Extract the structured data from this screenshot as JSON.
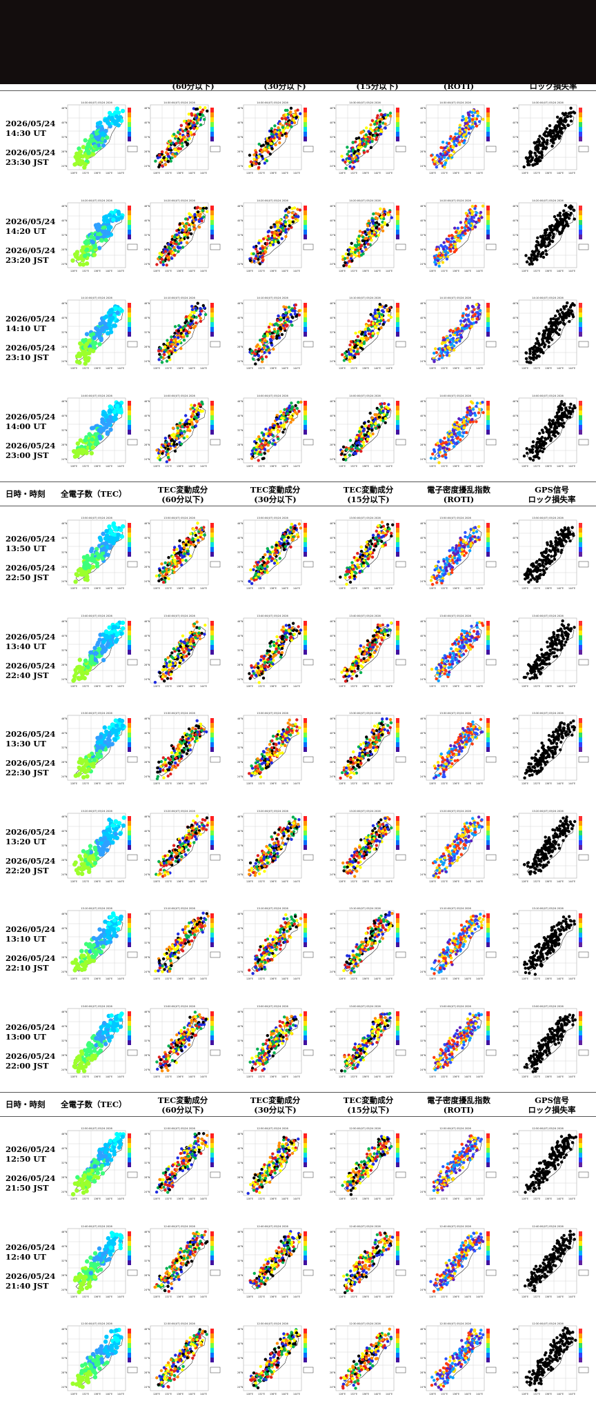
{
  "header": {
    "col_datetime": "日時・時刻",
    "col_tec": "全電子数（TEC）",
    "col_tec60": [
      "TEC変動成分",
      "(60分以下)"
    ],
    "col_tec30": [
      "TEC変動成分",
      "(30分以下)"
    ],
    "col_tec15": [
      "TEC変動成分",
      "(15分以下)"
    ],
    "col_roti": [
      "電子密度擾乱指数",
      "(ROTI)"
    ],
    "col_gps": [
      "GPS信号",
      "ロック損失率"
    ]
  },
  "top_clipped_header": {
    "col_tec60": "(60分以下)",
    "col_tec30": "(30分以下)",
    "col_tec15": "(15分以下)",
    "col_roti": "(ROTI)",
    "col_gps": "ロック損失率"
  },
  "groups": [
    {
      "rows": [
        {
          "ut": "2026/05/24 14:30 UT",
          "jst": "2026/05/24 23:30 JST",
          "map_time": "14:30:00(UT) 05/24 2026"
        },
        {
          "ut": "2026/05/24 14:20 UT",
          "jst": "2026/05/24 23:20 JST",
          "map_time": "14:20:00(UT) 05/24 2026"
        },
        {
          "ut": "2026/05/24 14:10 UT",
          "jst": "2026/05/24 23:10 JST",
          "map_time": "14:10:00(UT) 05/24 2026"
        },
        {
          "ut": "2026/05/24 14:00 UT",
          "jst": "2026/05/24 23:00 JST",
          "map_time": "14:00:00(UT) 05/24 2026"
        }
      ]
    },
    {
      "rows": [
        {
          "ut": "2026/05/24 13:50 UT",
          "jst": "2026/05/24 22:50 JST",
          "map_time": "13:50:00(UT) 05/24 2026"
        },
        {
          "ut": "2026/05/24 13:40 UT",
          "jst": "2026/05/24 22:40 JST",
          "map_time": "13:40:00(UT) 05/24 2026"
        },
        {
          "ut": "2026/05/24 13:30 UT",
          "jst": "2026/05/24 22:30 JST",
          "map_time": "13:30:00(UT) 05/24 2026"
        },
        {
          "ut": "2026/05/24 13:20 UT",
          "jst": "2026/05/24 22:20 JST",
          "map_time": "13:20:00(UT) 05/24 2026"
        },
        {
          "ut": "2026/05/24 13:10 UT",
          "jst": "2026/05/24 22:10 JST",
          "map_time": "13:10:00(UT) 05/24 2026"
        },
        {
          "ut": "2026/05/24 13:00 UT",
          "jst": "2026/05/24 22:00 JST",
          "map_time": "13:00:00(UT) 05/24 2026"
        }
      ]
    },
    {
      "rows": [
        {
          "ut": "2026/05/24 12:50 UT",
          "jst": "2026/05/24 21:50 JST",
          "map_time": "12:50:00(UT) 05/24 2026"
        },
        {
          "ut": "2026/05/24 12:40 UT",
          "jst": "2026/05/24 21:40 JST",
          "map_time": "12:40:00(UT) 05/24 2026"
        },
        {
          "ut": "",
          "jst": "",
          "map_time": "12:30:00(UT) 05/24 2026"
        }
      ]
    }
  ],
  "map_axes": {
    "lat_labels": [
      "46°N",
      "40°N",
      "32°N",
      "28°N",
      "24°N"
    ],
    "lon_labels": [
      "128°E",
      "132°E",
      "136°E",
      "140°E",
      "144°E"
    ]
  },
  "colors": {
    "top_bar": "#130d0d",
    "tec_palette": [
      "#00ffff",
      "#00c8ff",
      "#2fa0ff",
      "#3dff7a",
      "#9cff2c"
    ],
    "tec_var_palette": [
      "#000000",
      "#e02020",
      "#ff8c00",
      "#1e2be0",
      "#00b050",
      "#ffff00"
    ],
    "roti_palette": [
      "#5a1fbf",
      "#2b54ff",
      "#0aa0ff",
      "#ff3a10",
      "#ffde00"
    ],
    "lol_palette": [
      "#000000"
    ]
  }
}
